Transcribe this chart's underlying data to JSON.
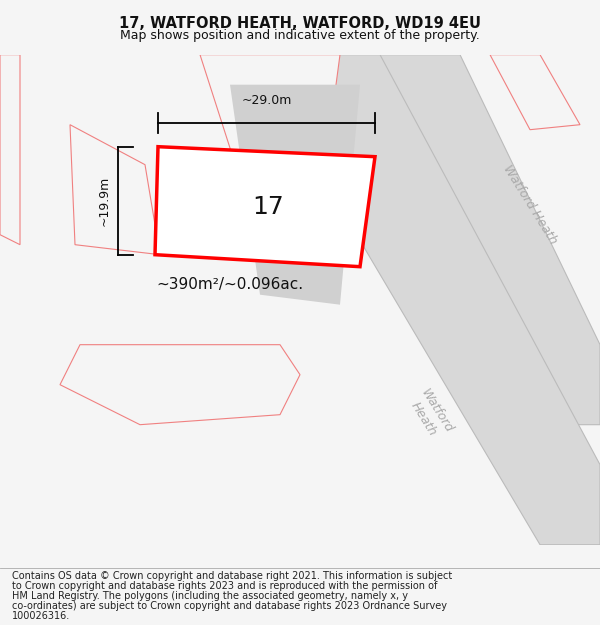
{
  "title_line1": "17, WATFORD HEATH, WATFORD, WD19 4EU",
  "title_line2": "Map shows position and indicative extent of the property.",
  "footer_text": "Contains OS data © Crown copyright and database right 2021. This information is subject to Crown copyright and database rights 2023 and is reproduced with the permission of HM Land Registry. The polygons (including the associated geometry, namely x, y co-ordinates) are subject to Crown copyright and database rights 2023 Ordnance Survey 100026316.",
  "area_label": "~390m²/~0.096ac.",
  "width_label": "~29.0m",
  "height_label": "~19.9m",
  "property_number": "17",
  "bg_color": "#f5f5f5",
  "map_bg": "#ffffff",
  "road_fill": "#d8d8d8",
  "road_edge": "#bbbbbb",
  "plot_fill": "#ffffff",
  "plot_edge": "#ff0000",
  "neighbor_fill": "#e8e8e8",
  "neighbor_edge": "#f08080",
  "building_fill": "#d0d0d0",
  "building_edge": "none",
  "dim_color": "#000000",
  "road_text_color": "#aaaaaa",
  "title_fontsize": 10.5,
  "subtitle_fontsize": 9,
  "footer_fontsize": 7,
  "label_fontsize": 11,
  "dim_fontsize": 9,
  "prop_num_fontsize": 18
}
